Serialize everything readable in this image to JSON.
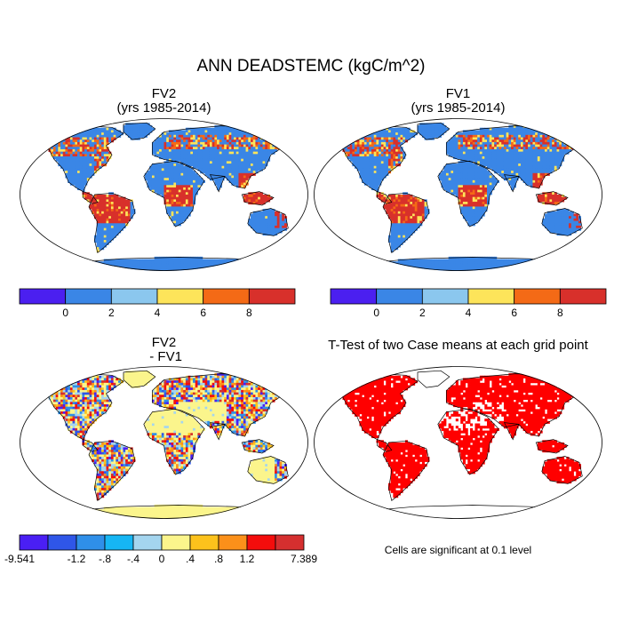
{
  "figure": {
    "title": "ANN DEADSTEMC (kgC/m^2)"
  },
  "panels": [
    {
      "id": "fv2",
      "title": "FV2",
      "subtitle": "(yrs 1985-2014)"
    },
    {
      "id": "fv1",
      "title": "FV1",
      "subtitle": "(yrs 1985-2014)"
    },
    {
      "id": "diff",
      "title": "FV2",
      "subtitle": " - FV1"
    },
    {
      "id": "ttest",
      "title": "T-Test of two Case means at each grid point",
      "note": "Cells are significant at 0.1 level"
    }
  ],
  "colorbar_abs": {
    "colors": [
      "#4b1ff0",
      "#3a86e6",
      "#8bc7ee",
      "#fde45a",
      "#f46a16",
      "#d8302b"
    ],
    "tick_labels": [
      "0",
      "2",
      "4",
      "6",
      "8"
    ]
  },
  "colorbar_diff": {
    "colors": [
      "#4a1ff4",
      "#2f56e8",
      "#2f8fe9",
      "#16b6f4",
      "#a4d5ef",
      "#fbf58c",
      "#fcc21c",
      "#fb901a",
      "#f40d0c",
      "#d52f2f"
    ],
    "tick_labels": [
      "-9.541",
      "-1.2",
      "-.8",
      "-.4",
      "0",
      ".4",
      ".8",
      "1.2",
      "7.389"
    ]
  },
  "legend_colors": {
    "land_abs": "#3a86e6",
    "land_diff": "#fbf58c",
    "significant": "#ff0000"
  }
}
